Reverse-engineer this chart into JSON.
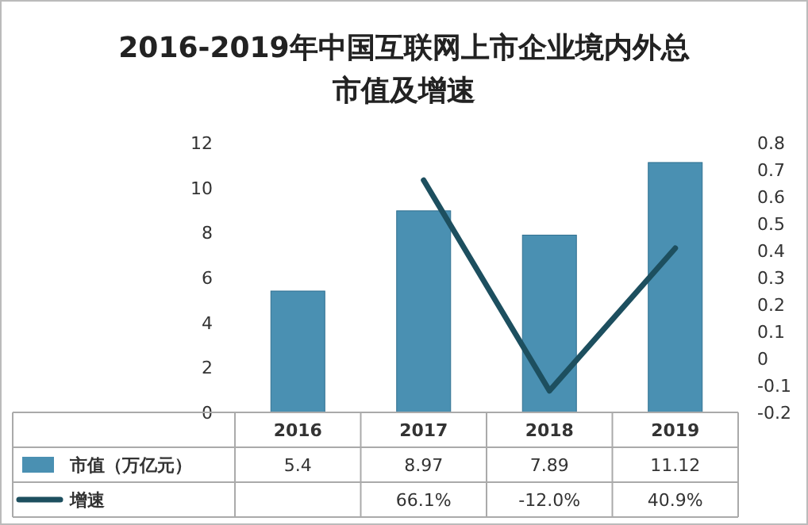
{
  "chart_data": {
    "type": "bar",
    "title": "2016-2019年中国互联网上市企业境内外总市值及增速",
    "categories": [
      "2016",
      "2017",
      "2018",
      "2019"
    ],
    "series": [
      {
        "name": "市值（万亿元）",
        "color": "#4a90b2",
        "values": [
          5.4,
          8.97,
          7.89,
          11.12
        ],
        "value_labels": [
          "5.4",
          "8.97",
          "7.89",
          "11.12"
        ]
      },
      {
        "name": "增速",
        "type": "line",
        "axis": "y2",
        "color": "#1d4f5f",
        "values": [
          null,
          0.661,
          -0.12,
          0.409
        ],
        "value_labels": [
          null,
          "66.1%",
          "-12.0%",
          "40.9%"
        ]
      }
    ],
    "ylim": [
      0,
      12
    ],
    "yticks": [
      0,
      2,
      4,
      6,
      8,
      10,
      12
    ],
    "y2lim": [
      -0.2,
      0.8
    ],
    "y2ticks": [
      -0.2,
      -0.1,
      0,
      0.1,
      0.2,
      0.3,
      0.4,
      0.5,
      0.6,
      0.7,
      0.8
    ],
    "legend": "bottom",
    "grid": false
  }
}
